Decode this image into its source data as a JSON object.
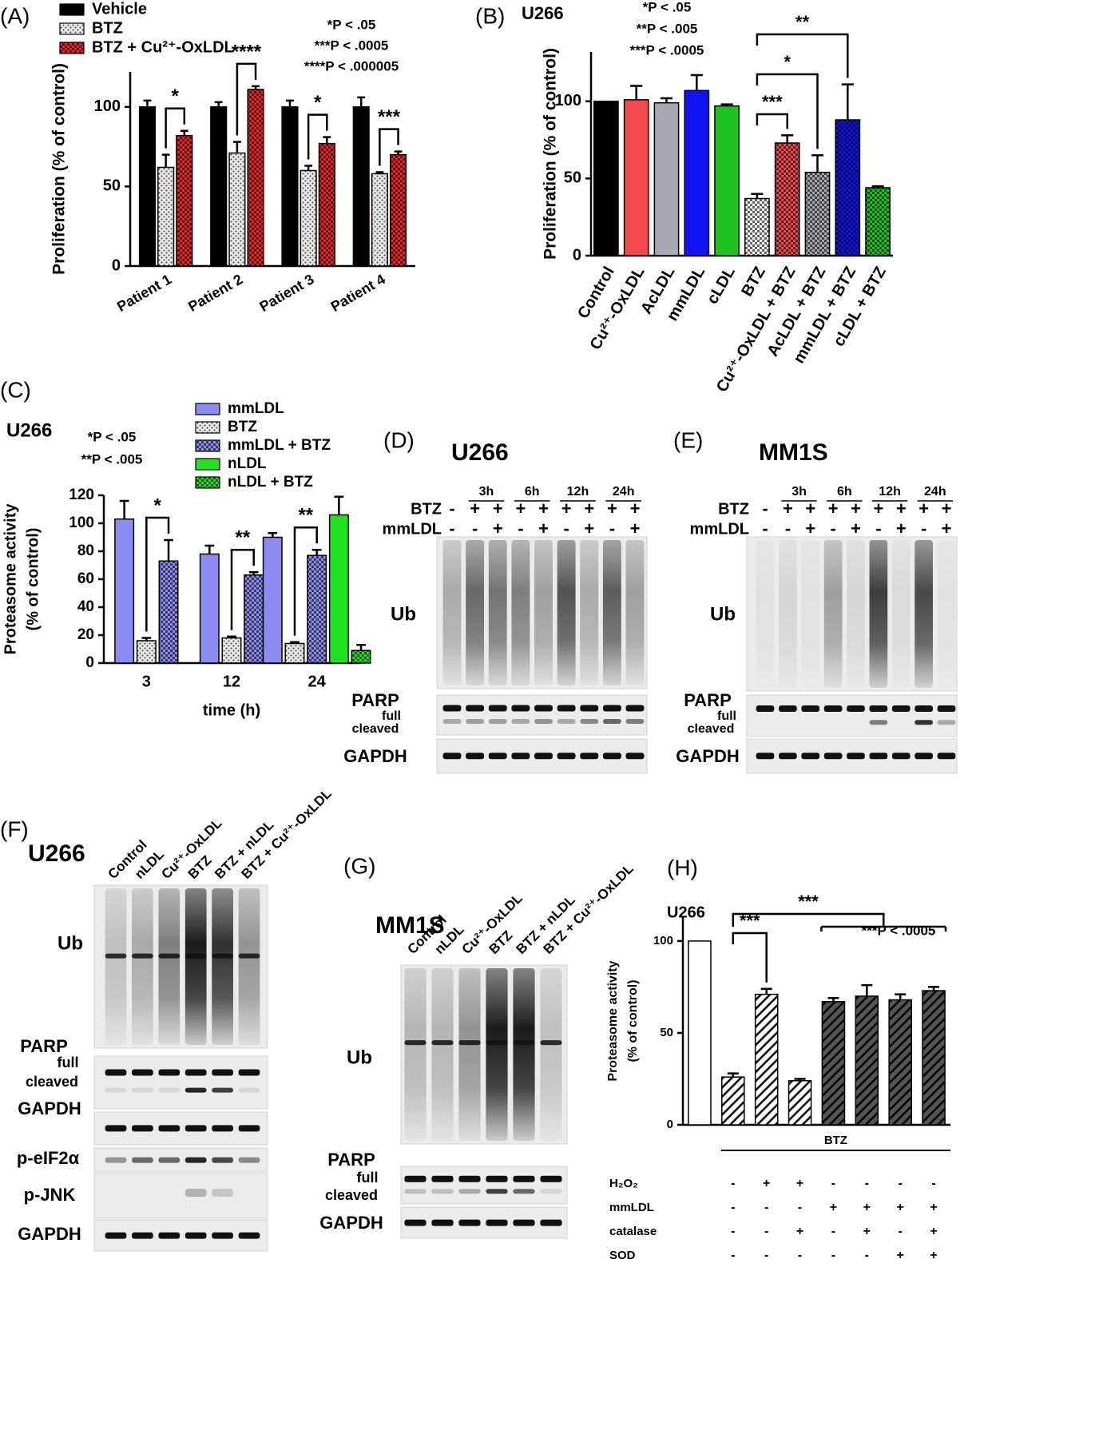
{
  "chart_data": [
    {
      "type": "bar",
      "panel": "(A)",
      "y_label": [
        "Proliferation (% of control)"
      ],
      "categories": [
        "Patient 1",
        "Patient 2",
        "Patient 3",
        "Patient 4"
      ],
      "series": [
        {
          "name": "Vehicle",
          "color": "#000000",
          "pattern": "solid",
          "values": [
            100,
            100,
            100,
            100
          ],
          "errors": [
            4,
            3,
            4,
            6
          ]
        },
        {
          "name": "BTZ",
          "color": "#e6e6e6",
          "pattern": "dots",
          "values": [
            62,
            71,
            60,
            58
          ],
          "errors": [
            8,
            7,
            3,
            1
          ]
        },
        {
          "name": "BTZ + Cu²⁺-OxLDL",
          "color": "#e8262a",
          "pattern": "checker",
          "values": [
            82,
            111,
            77,
            70
          ],
          "errors": [
            3,
            2,
            4,
            2
          ]
        }
      ],
      "ylim": [
        0,
        122
      ],
      "yticks": [
        0,
        50,
        100
      ],
      "significance": [
        "*",
        "****",
        "*",
        "***"
      ],
      "p_values": [
        "*P < .05",
        "***P < .0005",
        "****P < .000005"
      ]
    },
    {
      "type": "bar",
      "panel": "(B)",
      "title": "U266",
      "y_label": [
        "Proliferation (% of control)"
      ],
      "categories": [
        "Control",
        "Cu²⁺-OxLDL",
        "AcLDL",
        "mmLDL",
        "cLDL",
        "BTZ",
        "Cu²⁺-OxLDL + BTZ",
        "AcLDL + BTZ",
        "mmLDL + BTZ",
        "cLDL + BTZ"
      ],
      "values": [
        100,
        101,
        99,
        107,
        97,
        37,
        73,
        54,
        88,
        44
      ],
      "errors": [
        0,
        9,
        3,
        10,
        1,
        3,
        5,
        11,
        23,
        1
      ],
      "colors": [
        "#000000",
        "#f04a4e",
        "#a8a8b0",
        "#1414f0",
        "#1fc31f",
        "#ffffff",
        "#f04a4e",
        "#a8a8b0",
        "#1414f0",
        "#1fc31f"
      ],
      "patterns": [
        "solid",
        "solid",
        "solid",
        "solid",
        "solid",
        "checker",
        "checker",
        "checker",
        "checker",
        "checker"
      ],
      "ylim": [
        0,
        132
      ],
      "yticks": [
        0,
        50,
        100
      ],
      "significance": [
        "***",
        "*",
        "**"
      ],
      "p_values": [
        "*P < .05",
        "**P < .005",
        "***P < .0005"
      ]
    },
    {
      "type": "bar",
      "panel": "(C)",
      "title": "U266",
      "y_label": [
        "Proteasome activity",
        "(% of control)"
      ],
      "x_label": "time (h)",
      "categories": [
        "3",
        "12",
        "24"
      ],
      "series": [
        {
          "name": "mmLDL",
          "color": "#8c8cf0",
          "pattern": "solid",
          "values": [
            103,
            78,
            90
          ],
          "errors": [
            13,
            6,
            3
          ]
        },
        {
          "name": "BTZ",
          "color": "#e6e6e6",
          "pattern": "dots",
          "values": [
            16,
            18,
            14
          ],
          "errors": [
            2,
            1,
            1
          ]
        },
        {
          "name": "mmLDL + BTZ",
          "color": "#8c8cf0",
          "pattern": "checker",
          "values": [
            73,
            63,
            77
          ],
          "errors": [
            15,
            2,
            4
          ]
        },
        {
          "name": "nLDL",
          "color": "#22e022",
          "pattern": "solid",
          "values": [
            null,
            null,
            106
          ],
          "errors": [
            null,
            null,
            13
          ]
        },
        {
          "name": "nLDL + BTZ",
          "color": "#22e022",
          "pattern": "checker",
          "values": [
            null,
            null,
            9
          ],
          "errors": [
            null,
            null,
            4
          ]
        }
      ],
      "ylim": [
        0,
        120
      ],
      "yticks": [
        0,
        20,
        40,
        60,
        80,
        100,
        120
      ],
      "significance": [
        "*",
        "**",
        "**"
      ],
      "p_values": [
        "*P < .05",
        "**P < .005"
      ]
    },
    {
      "type": "bar",
      "panel": "(H)",
      "title": "U266",
      "y_label": [
        "Proteasome activity",
        "(% of control)"
      ],
      "categories": [
        null,
        null,
        null,
        null,
        null,
        null,
        null,
        null
      ],
      "values": [
        100,
        26,
        71,
        24,
        67,
        70,
        68,
        73
      ],
      "errors": [
        0,
        2,
        3,
        1,
        2,
        6,
        3,
        2
      ],
      "colors": [
        "#ffffff",
        "#ffffff",
        "#ffffff",
        "#ffffff",
        "#555555",
        "#555555",
        "#555555",
        "#555555"
      ],
      "patterns": [
        "solid",
        "hatch",
        "hatch",
        "hatch",
        "hatch",
        "hatch",
        "hatch",
        "hatch"
      ],
      "ylim": [
        0,
        113
      ],
      "yticks": [
        0,
        50,
        100
      ],
      "significance": [
        "***",
        "***"
      ],
      "p_values": [
        "***P < .0005"
      ],
      "group_label": "BTZ",
      "conditions": [
        {
          "label": "H₂O₂",
          "marks": [
            null,
            "-",
            "+",
            "+",
            "-",
            "-",
            "-",
            "-"
          ]
        },
        {
          "label": "mmLDL",
          "marks": [
            null,
            "-",
            "-",
            "-",
            "+",
            "+",
            "+",
            "+"
          ]
        },
        {
          "label": "catalase",
          "marks": [
            null,
            "-",
            "-",
            "+",
            "-",
            "+",
            "-",
            "+"
          ]
        },
        {
          "label": "SOD",
          "marks": [
            null,
            "-",
            "-",
            "-",
            "-",
            "-",
            "+",
            "+"
          ]
        }
      ]
    }
  ],
  "blots": [
    {
      "panel": "(D)",
      "title": "U266",
      "time_points": [
        "3h",
        "6h",
        "12h",
        "24h"
      ],
      "treatments": [
        {
          "label": "BTZ",
          "marks": [
            "-",
            "+",
            "+",
            "+",
            "+",
            "+",
            "+",
            "+",
            "+"
          ]
        },
        {
          "label": "mmLDL",
          "marks": [
            "-",
            "-",
            "+",
            "-",
            "+",
            "-",
            "+",
            "-",
            "+"
          ]
        }
      ],
      "bands": [
        "Ub",
        "PARP",
        "full",
        "cleaved",
        "GAPDH"
      ]
    },
    {
      "panel": "(E)",
      "title": "MM1S",
      "time_points": [
        "3h",
        "6h",
        "12h",
        "24h"
      ],
      "treatments": [
        {
          "label": "BTZ",
          "marks": [
            "-",
            "+",
            "+",
            "+",
            "+",
            "+",
            "+",
            "+",
            "+"
          ]
        },
        {
          "label": "mmLDL",
          "marks": [
            "-",
            "-",
            "+",
            "-",
            "+",
            "-",
            "+",
            "-",
            "+"
          ]
        }
      ],
      "bands": [
        "Ub",
        "PARP",
        "full",
        "cleaved",
        "GAPDH"
      ]
    },
    {
      "panel": "(F)",
      "title": "U266",
      "lanes": [
        "Control",
        "nLDL",
        "Cu²⁺-OxLDL",
        "BTZ",
        "BTZ + nLDL",
        "BTZ + Cu²⁺-OxLDL"
      ],
      "bands": [
        "Ub",
        "PARP",
        "full",
        "cleaved",
        "GAPDH",
        "p-eIF2α",
        "p-JNK",
        "GAPDH"
      ]
    },
    {
      "panel": "(G)",
      "title": "MM1S",
      "lanes": [
        "Control",
        "nLDL",
        "Cu²⁺-OxLDL",
        "BTZ",
        "BTZ + nLDL",
        "BTZ + Cu²⁺-OxLDL"
      ],
      "bands": [
        "Ub",
        "PARP",
        "full",
        "cleaved",
        "GAPDH"
      ]
    }
  ]
}
